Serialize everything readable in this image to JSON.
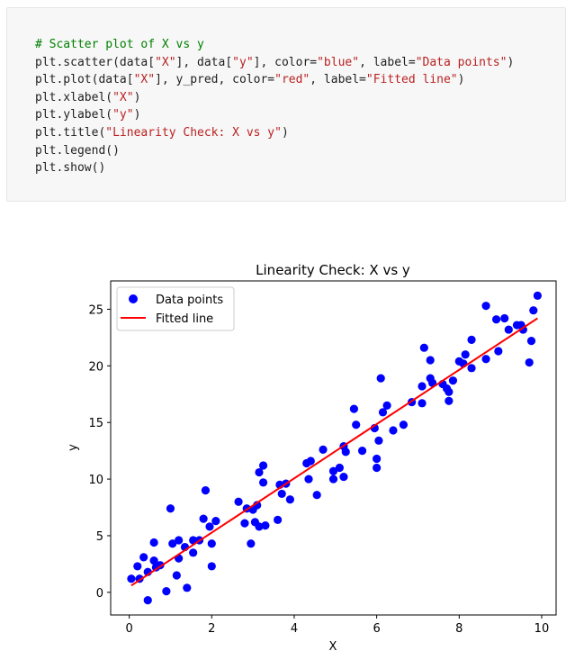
{
  "code_cell": {
    "lines": [
      [
        {
          "t": "# Scatter plot of X vs y",
          "c": "cm"
        }
      ],
      [
        {
          "t": "plt.scatter(data[",
          "c": ""
        },
        {
          "t": "\"X\"",
          "c": "st"
        },
        {
          "t": "], data[",
          "c": ""
        },
        {
          "t": "\"y\"",
          "c": "st"
        },
        {
          "t": "], color=",
          "c": ""
        },
        {
          "t": "\"blue\"",
          "c": "st"
        },
        {
          "t": ", label=",
          "c": ""
        },
        {
          "t": "\"Data points\"",
          "c": "st"
        },
        {
          "t": ")",
          "c": ""
        }
      ],
      [
        {
          "t": "plt.plot(data[",
          "c": ""
        },
        {
          "t": "\"X\"",
          "c": "st"
        },
        {
          "t": "], y_pred, color=",
          "c": ""
        },
        {
          "t": "\"red\"",
          "c": "st"
        },
        {
          "t": ", label=",
          "c": ""
        },
        {
          "t": "\"Fitted line\"",
          "c": "st"
        },
        {
          "t": ")",
          "c": ""
        }
      ],
      [
        {
          "t": "plt.xlabel(",
          "c": ""
        },
        {
          "t": "\"X\"",
          "c": "st"
        },
        {
          "t": ")",
          "c": ""
        }
      ],
      [
        {
          "t": "plt.ylabel(",
          "c": ""
        },
        {
          "t": "\"y\"",
          "c": "st"
        },
        {
          "t": ")",
          "c": ""
        }
      ],
      [
        {
          "t": "plt.title(",
          "c": ""
        },
        {
          "t": "\"Linearity Check: X vs y\"",
          "c": "st"
        },
        {
          "t": ")",
          "c": ""
        }
      ],
      [
        {
          "t": "plt.legend()",
          "c": ""
        }
      ],
      [
        {
          "t": "plt.show()",
          "c": ""
        }
      ]
    ]
  },
  "chart_data": {
    "type": "scatter",
    "title": "Linearity Check: X vs y",
    "xlabel": "X",
    "ylabel": "y",
    "xlim": [
      -0.45,
      10.35
    ],
    "ylim": [
      -2.0,
      27.5
    ],
    "xticks": [
      0,
      2,
      4,
      6,
      8,
      10
    ],
    "yticks": [
      0,
      5,
      10,
      15,
      20,
      25
    ],
    "legend_position": "top-left",
    "grid": false,
    "series": [
      {
        "name": "Data points",
        "kind": "scatter",
        "color": "#0000ff",
        "points": [
          [
            0.05,
            1.2
          ],
          [
            0.2,
            2.3
          ],
          [
            0.25,
            1.2
          ],
          [
            0.35,
            3.1
          ],
          [
            0.45,
            1.8
          ],
          [
            0.45,
            -0.7
          ],
          [
            0.6,
            4.4
          ],
          [
            0.6,
            2.8
          ],
          [
            0.65,
            2.2
          ],
          [
            0.75,
            2.4
          ],
          [
            0.9,
            0.1
          ],
          [
            1.0,
            7.4
          ],
          [
            1.05,
            4.3
          ],
          [
            1.15,
            1.5
          ],
          [
            1.2,
            4.6
          ],
          [
            1.2,
            3.0
          ],
          [
            1.35,
            4.0
          ],
          [
            1.4,
            0.4
          ],
          [
            1.55,
            4.6
          ],
          [
            1.55,
            3.5
          ],
          [
            1.7,
            4.6
          ],
          [
            1.8,
            6.5
          ],
          [
            1.85,
            9.0
          ],
          [
            1.95,
            5.8
          ],
          [
            2.0,
            4.3
          ],
          [
            2.0,
            2.3
          ],
          [
            2.1,
            6.3
          ],
          [
            2.65,
            8.0
          ],
          [
            2.8,
            6.1
          ],
          [
            2.85,
            7.4
          ],
          [
            2.95,
            4.3
          ],
          [
            3.0,
            7.3
          ],
          [
            3.05,
            6.2
          ],
          [
            3.1,
            7.7
          ],
          [
            3.15,
            10.6
          ],
          [
            3.15,
            5.8
          ],
          [
            3.25,
            11.2
          ],
          [
            3.25,
            9.7
          ],
          [
            3.3,
            5.9
          ],
          [
            3.6,
            6.4
          ],
          [
            3.65,
            9.5
          ],
          [
            3.7,
            8.7
          ],
          [
            3.8,
            9.6
          ],
          [
            3.9,
            8.2
          ],
          [
            4.3,
            11.4
          ],
          [
            4.35,
            10.0
          ],
          [
            4.4,
            11.6
          ],
          [
            4.55,
            8.6
          ],
          [
            4.7,
            12.6
          ],
          [
            4.95,
            10.7
          ],
          [
            4.95,
            10.0
          ],
          [
            5.1,
            11.0
          ],
          [
            5.2,
            12.9
          ],
          [
            5.2,
            10.2
          ],
          [
            5.25,
            12.4
          ],
          [
            5.45,
            16.2
          ],
          [
            5.5,
            14.8
          ],
          [
            5.65,
            12.5
          ],
          [
            5.95,
            14.5
          ],
          [
            6.0,
            11.8
          ],
          [
            6.0,
            11.0
          ],
          [
            6.05,
            13.4
          ],
          [
            6.1,
            18.9
          ],
          [
            6.15,
            15.9
          ],
          [
            6.25,
            16.5
          ],
          [
            6.4,
            14.3
          ],
          [
            6.65,
            14.8
          ],
          [
            6.85,
            16.8
          ],
          [
            7.1,
            18.2
          ],
          [
            7.1,
            16.7
          ],
          [
            7.15,
            21.6
          ],
          [
            7.3,
            20.5
          ],
          [
            7.3,
            18.9
          ],
          [
            7.35,
            18.5
          ],
          [
            7.6,
            18.4
          ],
          [
            7.7,
            18.0
          ],
          [
            7.75,
            17.7
          ],
          [
            7.75,
            16.9
          ],
          [
            7.85,
            18.7
          ],
          [
            8.0,
            20.4
          ],
          [
            8.1,
            20.2
          ],
          [
            8.15,
            21.0
          ],
          [
            8.3,
            19.8
          ],
          [
            8.3,
            22.3
          ],
          [
            8.65,
            25.3
          ],
          [
            8.65,
            20.6
          ],
          [
            8.9,
            24.1
          ],
          [
            8.95,
            21.3
          ],
          [
            9.1,
            24.2
          ],
          [
            9.2,
            23.2
          ],
          [
            9.4,
            23.6
          ],
          [
            9.5,
            23.6
          ],
          [
            9.55,
            23.2
          ],
          [
            9.7,
            20.3
          ],
          [
            9.75,
            22.2
          ],
          [
            9.8,
            24.9
          ],
          [
            9.9,
            26.2
          ]
        ]
      },
      {
        "name": "Fitted line",
        "kind": "line",
        "color": "#ff0000",
        "points": [
          [
            0.05,
            0.6
          ],
          [
            9.9,
            24.2
          ]
        ]
      }
    ]
  }
}
